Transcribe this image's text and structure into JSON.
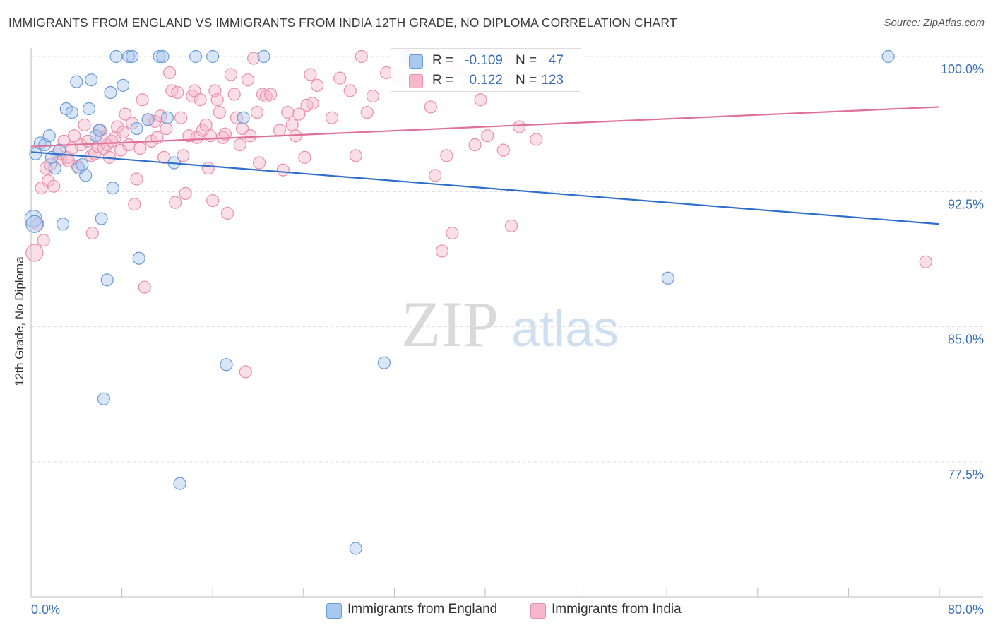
{
  "title": "IMMIGRANTS FROM ENGLAND VS IMMIGRANTS FROM INDIA 12TH GRADE, NO DIPLOMA CORRELATION CHART",
  "source": "Source: ZipAtlas.com",
  "watermark": {
    "zip": "ZIP",
    "atlas": "atlas"
  },
  "legend": {
    "r_label": "R =",
    "n_label": "N =",
    "england": {
      "r": "-0.109",
      "n": "47"
    },
    "india": {
      "r": "0.122",
      "n": "123"
    }
  },
  "bottom_legend": {
    "england": "Immigrants from England",
    "india": "Immigrants from India"
  },
  "colors": {
    "england_fill": "#a9c8f0",
    "england_stroke": "#6a9ad8",
    "england_line": "#2f6fcb",
    "india_fill": "#f6b7ca",
    "india_stroke": "#ea8fac",
    "india_line": "#e0709a",
    "axis_label": "#3a6fc0",
    "grid": "#dddddd"
  },
  "chart_data": {
    "type": "scatter",
    "xlabel": "",
    "ylabel": "12th Grade, No Diploma",
    "xlim": [
      0,
      80
    ],
    "ylim": [
      72,
      101.5
    ],
    "x_tick_labels": [
      "0.0%",
      "80.0%"
    ],
    "y_ticks": [
      77.5,
      85.0,
      92.5,
      100.0
    ],
    "y_tick_labels": [
      "77.5%",
      "85.0%",
      "92.5%",
      "100.0%"
    ],
    "grid": true,
    "series": [
      {
        "name": "Immigrants from England",
        "trend": {
          "x": [
            0,
            80
          ],
          "y": [
            94.7,
            90.7
          ]
        },
        "points": [
          [
            0.4,
            94.6
          ],
          [
            0.8,
            95.2
          ],
          [
            1.2,
            95.1
          ],
          [
            1.6,
            95.6
          ],
          [
            1.8,
            94.4
          ],
          [
            2.1,
            93.8
          ],
          [
            2.5,
            94.8
          ],
          [
            2.8,
            90.7
          ],
          [
            3.1,
            97.1
          ],
          [
            3.6,
            96.9
          ],
          [
            4.0,
            98.6
          ],
          [
            4.2,
            93.8
          ],
          [
            4.5,
            94.0
          ],
          [
            4.8,
            93.4
          ],
          [
            5.1,
            97.1
          ],
          [
            5.3,
            98.7
          ],
          [
            5.7,
            95.6
          ],
          [
            6.0,
            95.9
          ],
          [
            6.2,
            91.0
          ],
          [
            6.4,
            81.0
          ],
          [
            6.7,
            87.6
          ],
          [
            7.0,
            98.0
          ],
          [
            7.2,
            92.7
          ],
          [
            7.5,
            100.0
          ],
          [
            8.1,
            98.4
          ],
          [
            8.6,
            100.0
          ],
          [
            8.9,
            100.0
          ],
          [
            9.3,
            96.0
          ],
          [
            9.5,
            88.8
          ],
          [
            10.3,
            96.5
          ],
          [
            11.3,
            100.0
          ],
          [
            11.6,
            100.0
          ],
          [
            12.6,
            94.1
          ],
          [
            13.1,
            76.3
          ],
          [
            14.5,
            100.0
          ],
          [
            16.0,
            100.0
          ],
          [
            17.2,
            82.9
          ],
          [
            18.7,
            96.6
          ],
          [
            20.5,
            100.0
          ],
          [
            28.6,
            72.7
          ],
          [
            31.1,
            83.0
          ],
          [
            33.0,
            100.0
          ],
          [
            56.1,
            87.7
          ],
          [
            75.5,
            100.0
          ],
          [
            0.2,
            91.0
          ],
          [
            0.3,
            90.7
          ],
          [
            12.0,
            96.6
          ]
        ]
      },
      {
        "name": "Immigrants from India",
        "trend": {
          "x": [
            0,
            80
          ],
          "y": [
            95.0,
            97.2
          ]
        },
        "points": [
          [
            0.3,
            89.1
          ],
          [
            0.6,
            90.7
          ],
          [
            0.9,
            92.7
          ],
          [
            1.1,
            89.8
          ],
          [
            1.3,
            93.8
          ],
          [
            1.5,
            93.1
          ],
          [
            1.7,
            94.0
          ],
          [
            2.0,
            92.8
          ],
          [
            2.3,
            94.6
          ],
          [
            2.6,
            94.3
          ],
          [
            2.9,
            95.3
          ],
          [
            3.2,
            94.4
          ],
          [
            3.6,
            94.9
          ],
          [
            3.8,
            95.6
          ],
          [
            4.1,
            93.9
          ],
          [
            4.4,
            95.1
          ],
          [
            4.7,
            96.2
          ],
          [
            5.0,
            95.3
          ],
          [
            5.3,
            94.5
          ],
          [
            5.4,
            90.2
          ],
          [
            5.6,
            94.6
          ],
          [
            5.9,
            95.0
          ],
          [
            6.1,
            95.9
          ],
          [
            6.4,
            94.9
          ],
          [
            6.7,
            95.1
          ],
          [
            6.9,
            94.4
          ],
          [
            7.1,
            95.3
          ],
          [
            7.4,
            95.5
          ],
          [
            7.6,
            96.1
          ],
          [
            7.9,
            94.8
          ],
          [
            8.1,
            95.8
          ],
          [
            8.3,
            96.8
          ],
          [
            8.6,
            95.1
          ],
          [
            8.9,
            96.3
          ],
          [
            9.1,
            91.8
          ],
          [
            9.3,
            93.2
          ],
          [
            9.6,
            94.9
          ],
          [
            9.8,
            97.6
          ],
          [
            10.0,
            87.2
          ],
          [
            10.3,
            96.5
          ],
          [
            10.6,
            95.3
          ],
          [
            10.9,
            96.4
          ],
          [
            11.1,
            95.5
          ],
          [
            11.4,
            96.7
          ],
          [
            11.7,
            94.4
          ],
          [
            11.9,
            96.0
          ],
          [
            12.2,
            99.1
          ],
          [
            12.4,
            98.1
          ],
          [
            12.7,
            91.9
          ],
          [
            12.9,
            98.0
          ],
          [
            13.2,
            96.6
          ],
          [
            13.4,
            94.5
          ],
          [
            13.6,
            92.4
          ],
          [
            13.9,
            95.6
          ],
          [
            14.2,
            97.8
          ],
          [
            14.4,
            98.1
          ],
          [
            14.6,
            95.5
          ],
          [
            14.9,
            97.6
          ],
          [
            15.1,
            95.9
          ],
          [
            15.4,
            96.2
          ],
          [
            15.6,
            93.8
          ],
          [
            15.8,
            95.6
          ],
          [
            16.0,
            92.0
          ],
          [
            16.2,
            98.1
          ],
          [
            16.4,
            97.6
          ],
          [
            16.6,
            96.9
          ],
          [
            16.9,
            95.5
          ],
          [
            17.1,
            95.7
          ],
          [
            17.3,
            91.3
          ],
          [
            17.6,
            99.0
          ],
          [
            17.9,
            97.9
          ],
          [
            18.1,
            96.6
          ],
          [
            18.4,
            95.1
          ],
          [
            18.6,
            96.0
          ],
          [
            18.9,
            82.5
          ],
          [
            19.1,
            98.7
          ],
          [
            19.3,
            95.6
          ],
          [
            19.6,
            99.9
          ],
          [
            19.9,
            96.9
          ],
          [
            20.1,
            94.1
          ],
          [
            20.4,
            97.9
          ],
          [
            20.7,
            97.8
          ],
          [
            21.1,
            97.9
          ],
          [
            21.9,
            95.9
          ],
          [
            22.2,
            93.7
          ],
          [
            22.6,
            96.9
          ],
          [
            23.0,
            96.2
          ],
          [
            23.3,
            95.6
          ],
          [
            23.6,
            96.8
          ],
          [
            24.1,
            94.4
          ],
          [
            24.3,
            97.3
          ],
          [
            24.6,
            99.0
          ],
          [
            24.8,
            97.4
          ],
          [
            25.2,
            98.4
          ],
          [
            26.5,
            96.6
          ],
          [
            27.2,
            98.8
          ],
          [
            28.1,
            98.1
          ],
          [
            28.6,
            94.5
          ],
          [
            29.1,
            100.0
          ],
          [
            29.6,
            96.9
          ],
          [
            30.1,
            97.8
          ],
          [
            31.3,
            99.1
          ],
          [
            32.4,
            98.9
          ],
          [
            33.4,
            100.0
          ],
          [
            33.9,
            98.6
          ],
          [
            35.2,
            97.2
          ],
          [
            35.6,
            93.4
          ],
          [
            36.2,
            89.2
          ],
          [
            36.6,
            94.5
          ],
          [
            37.1,
            90.2
          ],
          [
            37.6,
            99.3
          ],
          [
            38.5,
            98.6
          ],
          [
            39.1,
            95.1
          ],
          [
            39.6,
            97.6
          ],
          [
            40.2,
            95.6
          ],
          [
            41.0,
            98.5
          ],
          [
            41.6,
            94.8
          ],
          [
            42.3,
            90.6
          ],
          [
            43.0,
            96.1
          ],
          [
            44.5,
            95.4
          ],
          [
            78.8,
            88.6
          ],
          [
            3.3,
            94.2
          ],
          [
            6.2,
            95.5
          ]
        ]
      }
    ]
  }
}
